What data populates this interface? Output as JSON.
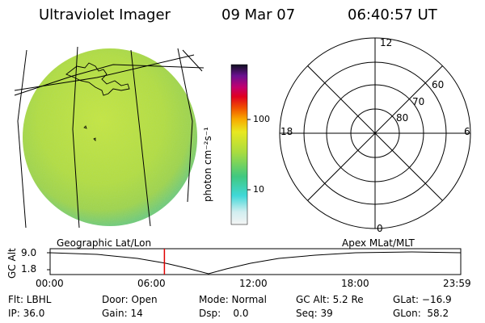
{
  "header": {
    "instrument": "Ultraviolet Imager",
    "date": "09 Mar 07",
    "time": "06:40:57 UT"
  },
  "colorbar": {
    "unit_label": "photon cm⁻²s⁻¹",
    "ticks": [
      "100",
      "10"
    ]
  },
  "polar_plot": {
    "mlt_labels": [
      "12",
      "18",
      "6",
      "0"
    ],
    "lat_labels": [
      "60",
      "70",
      "80"
    ]
  },
  "timeline": {
    "left_label": "Geographic Lat/Lon",
    "right_label": "Apex MLat/MLT",
    "y_axis_label": "GC Alt",
    "y_ticks": [
      "9.0",
      "1.8"
    ],
    "x_ticks": [
      "00:00",
      "06:00",
      "12:00",
      "18:00",
      "23:59"
    ],
    "current_time_hours": 6.68
  },
  "info": {
    "col1": [
      "Flt: LBHL",
      "IP: 36.0"
    ],
    "col2": [
      "Door: Open",
      "Gain: 14"
    ],
    "col3": [
      "Mode: Normal",
      "Dsp:    0.0"
    ],
    "col4": [
      "GC Alt: 5.2 Re",
      "Seq: 39"
    ],
    "col5": [
      "GLat: −16.9",
      "GLon:  58.2"
    ]
  },
  "colors": {
    "accent_red": "#e00000",
    "earth_fill": "#b8dc3a"
  }
}
